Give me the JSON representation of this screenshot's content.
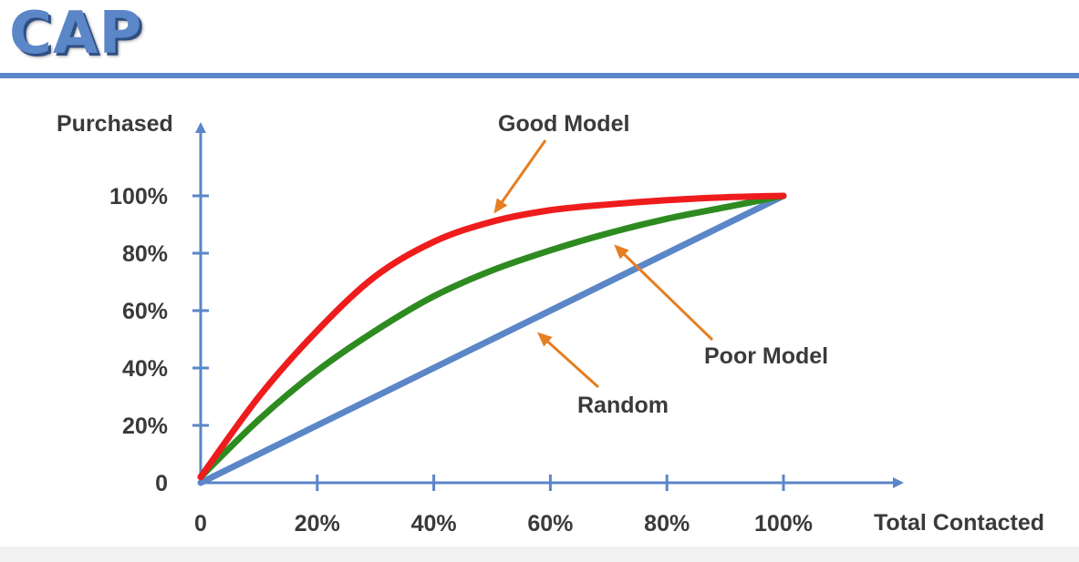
{
  "title": "CAP",
  "chart_data": {
    "type": "line",
    "xlabel": "Total Contacted",
    "ylabel": "Purchased",
    "xlim": [
      0,
      100
    ],
    "ylim": [
      0,
      100
    ],
    "x_ticks": [
      "0",
      "20%",
      "40%",
      "60%",
      "80%",
      "100%"
    ],
    "y_ticks": [
      "0",
      "20%",
      "40%",
      "60%",
      "80%",
      "100%"
    ],
    "series": [
      {
        "name": "Random",
        "color": "#5b86c7",
        "x": [
          0,
          100
        ],
        "y": [
          0,
          100
        ]
      },
      {
        "name": "Poor Model",
        "color": "#2e8b20",
        "x": [
          0,
          10,
          20,
          30,
          40,
          50,
          60,
          70,
          80,
          90,
          100
        ],
        "y": [
          2,
          22,
          39,
          53,
          65,
          74,
          81,
          87,
          92,
          96,
          100
        ]
      },
      {
        "name": "Good Model",
        "color": "#ee1c1c",
        "x": [
          0,
          10,
          20,
          30,
          40,
          50,
          60,
          70,
          80,
          90,
          100
        ],
        "y": [
          2,
          30,
          53,
          72,
          84,
          91,
          95,
          97,
          98.5,
          99.5,
          100
        ]
      }
    ],
    "annotations": [
      "Good Model",
      "Poor Model",
      "Random"
    ],
    "annotation_color": "#e67e22",
    "grid": false,
    "legend": "none"
  }
}
